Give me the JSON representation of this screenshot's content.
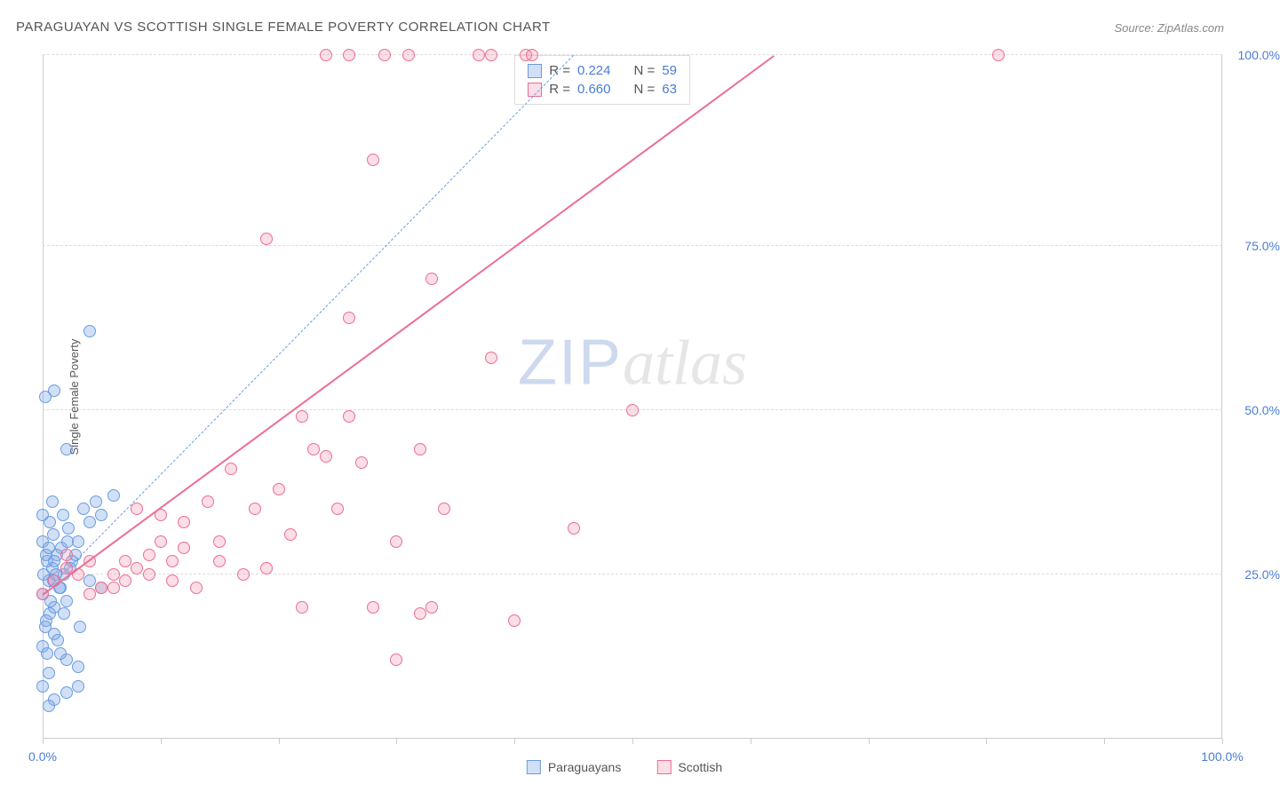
{
  "title": "PARAGUAYAN VS SCOTTISH SINGLE FEMALE POVERTY CORRELATION CHART",
  "source_label": "Source: ",
  "source_value": "ZipAtlas.com",
  "y_axis_label": "Single Female Poverty",
  "watermark": {
    "part1": "ZIP",
    "part2": "atlas"
  },
  "chart": {
    "type": "scatter",
    "xlim": [
      0,
      100
    ],
    "ylim": [
      0,
      104
    ],
    "x_ticks": [
      0,
      10,
      20,
      30,
      40,
      50,
      60,
      70,
      80,
      90,
      100
    ],
    "x_tick_labels": {
      "0": "0.0%",
      "100": "100.0%"
    },
    "y_gridlines": [
      25,
      50,
      75,
      104
    ],
    "y_tick_labels": {
      "25": "25.0%",
      "50": "50.0%",
      "75": "75.0%",
      "104": "100.0%"
    },
    "background_color": "#ffffff",
    "grid_color": "#dddddd",
    "axis_color": "#cccccc",
    "tick_label_color": "#4a7dd4",
    "marker_size": 14,
    "marker_opacity": 0.55,
    "series": [
      {
        "name": "Paraguayans",
        "color": "#7aa7e8",
        "fill": "rgba(122,167,232,0.35)",
        "stroke": "#6b9de0",
        "R": "0.224",
        "N": "59",
        "trend": {
          "x1": 0,
          "y1": 22,
          "x2": 45,
          "y2": 104,
          "dashed": true,
          "width": 1.5
        },
        "points": [
          [
            0,
            22
          ],
          [
            0.5,
            24
          ],
          [
            1,
            20
          ],
          [
            0.8,
            26
          ],
          [
            1.5,
            23
          ],
          [
            0.3,
            18
          ],
          [
            1.2,
            28
          ],
          [
            0,
            30
          ],
          [
            0.6,
            33
          ],
          [
            2,
            21
          ],
          [
            1.8,
            25
          ],
          [
            2.5,
            27
          ],
          [
            3,
            30
          ],
          [
            2.2,
            32
          ],
          [
            3.5,
            35
          ],
          [
            4,
            33
          ],
          [
            4.5,
            36
          ],
          [
            5,
            34
          ],
          [
            6,
            37
          ],
          [
            0,
            14
          ],
          [
            1,
            16
          ],
          [
            2,
            12
          ],
          [
            0.5,
            10
          ],
          [
            1.5,
            13
          ],
          [
            3,
            11
          ],
          [
            0,
            8
          ],
          [
            1,
            6
          ],
          [
            2,
            7
          ],
          [
            0.5,
            5
          ],
          [
            3,
            8
          ],
          [
            4,
            24
          ],
          [
            5,
            23
          ],
          [
            2,
            44
          ],
          [
            1,
            53
          ],
          [
            0.2,
            52
          ],
          [
            4,
            62
          ],
          [
            0,
            34
          ],
          [
            1.8,
            19
          ],
          [
            3.2,
            17
          ],
          [
            2.8,
            28
          ],
          [
            0.4,
            27
          ],
          [
            1.6,
            29
          ],
          [
            0.9,
            31
          ],
          [
            2.3,
            26
          ],
          [
            0.1,
            25
          ],
          [
            1.1,
            25
          ],
          [
            0.7,
            21
          ],
          [
            1.4,
            23
          ],
          [
            0.6,
            19
          ],
          [
            0.2,
            17
          ],
          [
            1.3,
            15
          ],
          [
            0.4,
            13
          ],
          [
            1.7,
            34
          ],
          [
            0.8,
            36
          ],
          [
            2.1,
            30
          ],
          [
            0.3,
            28
          ],
          [
            0.5,
            29
          ],
          [
            1.0,
            27
          ],
          [
            0.9,
            24
          ]
        ]
      },
      {
        "name": "Scottish",
        "color": "#f191ab",
        "fill": "rgba(241,145,171,0.30)",
        "stroke": "#eb6e93",
        "R": "0.660",
        "N": "63",
        "trend": {
          "x1": 0,
          "y1": 22,
          "x2": 62,
          "y2": 104,
          "dashed": false,
          "width": 2.5
        },
        "points": [
          [
            0,
            22
          ],
          [
            1,
            24
          ],
          [
            2,
            26
          ],
          [
            3,
            25
          ],
          [
            4,
            27
          ],
          [
            2,
            28
          ],
          [
            5,
            23
          ],
          [
            6,
            25
          ],
          [
            7,
            24
          ],
          [
            8,
            26
          ],
          [
            4,
            22
          ],
          [
            9,
            28
          ],
          [
            10,
            30
          ],
          [
            11,
            27
          ],
          [
            12,
            29
          ],
          [
            8,
            35
          ],
          [
            10,
            34
          ],
          [
            12,
            33
          ],
          [
            14,
            36
          ],
          [
            15,
            30
          ],
          [
            16,
            41
          ],
          [
            18,
            35
          ],
          [
            20,
            38
          ],
          [
            21,
            31
          ],
          [
            22,
            49
          ],
          [
            22,
            20
          ],
          [
            23,
            44
          ],
          [
            24,
            43
          ],
          [
            25,
            35
          ],
          [
            26,
            49
          ],
          [
            27,
            42
          ],
          [
            28,
            88
          ],
          [
            26,
            64
          ],
          [
            19,
            76
          ],
          [
            33,
            70
          ],
          [
            32,
            44
          ],
          [
            30,
            30
          ],
          [
            28,
            20
          ],
          [
            30,
            12
          ],
          [
            32,
            19
          ],
          [
            33,
            20
          ],
          [
            38,
            58
          ],
          [
            40,
            18
          ],
          [
            45,
            32
          ],
          [
            50,
            50
          ],
          [
            24,
            104
          ],
          [
            26,
            104
          ],
          [
            29,
            104
          ],
          [
            31,
            104
          ],
          [
            37,
            104
          ],
          [
            38,
            104
          ],
          [
            41,
            104
          ],
          [
            41.5,
            104
          ],
          [
            81,
            104
          ],
          [
            34,
            35
          ],
          [
            13,
            23
          ],
          [
            6,
            23
          ],
          [
            7,
            27
          ],
          [
            9,
            25
          ],
          [
            11,
            24
          ],
          [
            15,
            27
          ],
          [
            17,
            25
          ],
          [
            19,
            26
          ]
        ]
      }
    ]
  },
  "stats_box": {
    "r_label": "R =",
    "n_label": "N ="
  },
  "bottom_legend": {
    "items": [
      "Paraguayans",
      "Scottish"
    ]
  }
}
